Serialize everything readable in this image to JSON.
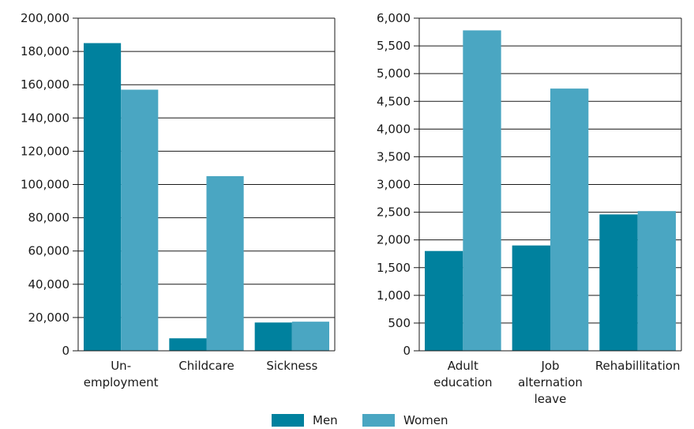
{
  "colors": {
    "men": "#00819e",
    "women": "#4aa6c2",
    "gridline": "#1a1a1a",
    "axis": "#1a1a1a"
  },
  "legend": {
    "items": [
      {
        "label": "Men",
        "color": "#00819e"
      },
      {
        "label": "Women",
        "color": "#4aa6c2"
      }
    ]
  },
  "chart_data": [
    {
      "type": "bar",
      "categories": [
        [
          "Un-",
          "employment"
        ],
        [
          "Childcare"
        ],
        [
          "Sickness"
        ]
      ],
      "series": [
        {
          "name": "Men",
          "values": [
            185000,
            7500,
            17000
          ]
        },
        {
          "name": "Women",
          "values": [
            157000,
            105000,
            17500
          ]
        }
      ],
      "ylim": [
        0,
        200000
      ],
      "yticks": [
        0,
        20000,
        40000,
        60000,
        80000,
        100000,
        120000,
        140000,
        160000,
        180000,
        200000
      ],
      "ytick_labels": [
        "0",
        "20,000",
        "40,000",
        "60,000",
        "80,000",
        "100,000",
        "120,000",
        "140,000",
        "160,000",
        "180,000",
        "200,000"
      ],
      "grid": true,
      "legend": "bottom-center"
    },
    {
      "type": "bar",
      "categories": [
        [
          "Adult",
          "education"
        ],
        [
          "Job",
          "alternation",
          "leave"
        ],
        [
          "Rehabillitation"
        ]
      ],
      "series": [
        {
          "name": "Men",
          "values": [
            1800,
            1900,
            2460
          ]
        },
        {
          "name": "Women",
          "values": [
            5780,
            4730,
            2520
          ]
        }
      ],
      "ylim": [
        0,
        6000
      ],
      "yticks": [
        0,
        500,
        1000,
        1500,
        2000,
        2500,
        3000,
        3500,
        4000,
        4500,
        5000,
        5500,
        6000
      ],
      "ytick_labels": [
        "0",
        "500",
        "1,000",
        "1,500",
        "2,000",
        "2,500",
        "3,000",
        "3,500",
        "4,000",
        "4,500",
        "5,000",
        "5,500",
        "6,000"
      ],
      "grid": true,
      "legend": "bottom-center"
    }
  ]
}
